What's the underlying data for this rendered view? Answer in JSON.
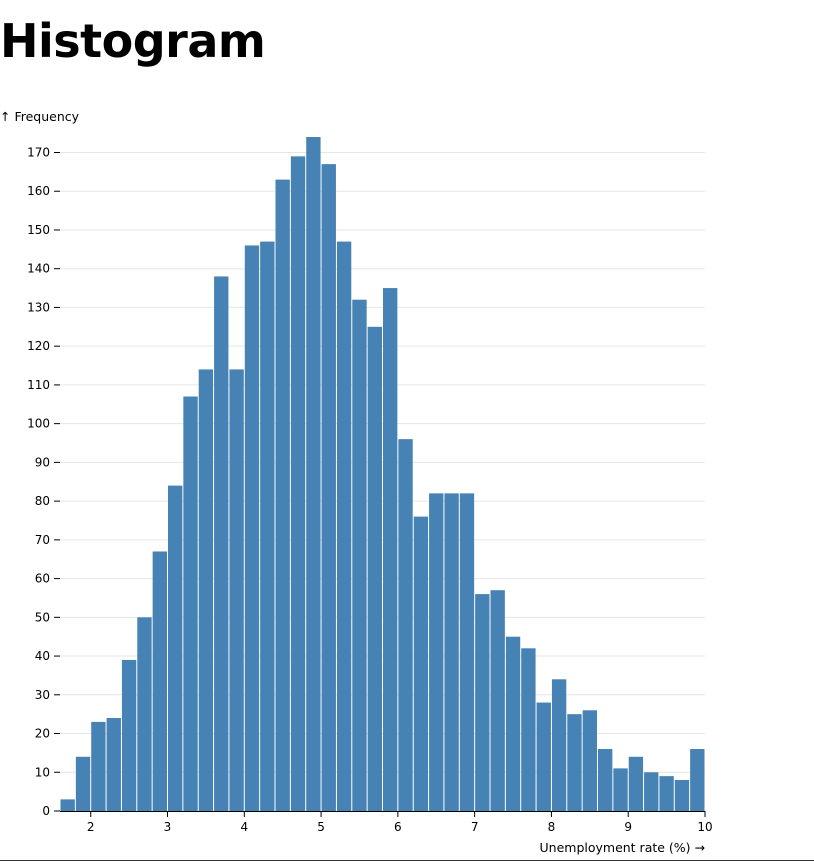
{
  "page": {
    "title": "Histogram"
  },
  "chart_data": {
    "type": "bar",
    "subtype": "histogram",
    "xlabel": "Unemployment rate (%) →",
    "ylabel": "↑ Frequency",
    "xlim": [
      1.6,
      10
    ],
    "ylim": [
      0,
      174
    ],
    "bin_width": 0.2,
    "bins_start": [
      1.6,
      1.8,
      2.0,
      2.2,
      2.4,
      2.6,
      2.8,
      3.0,
      3.2,
      3.4,
      3.6,
      3.8,
      4.0,
      4.2,
      4.4,
      4.6,
      4.8,
      5.0,
      5.2,
      5.4,
      5.6,
      5.8,
      6.0,
      6.2,
      6.4,
      6.6,
      6.8,
      7.0,
      7.2,
      7.4,
      7.6,
      7.8,
      8.0,
      8.2,
      8.4,
      8.6,
      8.8,
      9.0,
      9.2,
      9.4,
      9.6,
      9.8
    ],
    "values": [
      3,
      14,
      23,
      24,
      39,
      50,
      67,
      84,
      107,
      114,
      138,
      114,
      146,
      147,
      163,
      169,
      174,
      167,
      147,
      132,
      125,
      135,
      96,
      76,
      82,
      82,
      82,
      56,
      57,
      45,
      42,
      28,
      34,
      25,
      26,
      16,
      11,
      14,
      10,
      9,
      8,
      16
    ],
    "x_ticks": [
      "2",
      "3",
      "4",
      "5",
      "6",
      "7",
      "8",
      "9",
      "10"
    ],
    "y_ticks": [
      "0",
      "10",
      "20",
      "30",
      "40",
      "50",
      "60",
      "70",
      "80",
      "90",
      "100",
      "110",
      "120",
      "130",
      "140",
      "150",
      "160",
      "170"
    ],
    "grid": "horizontal",
    "colors": {
      "bar": "#4682b4",
      "grid": "#e6e6e6",
      "axis": "#000000"
    }
  }
}
